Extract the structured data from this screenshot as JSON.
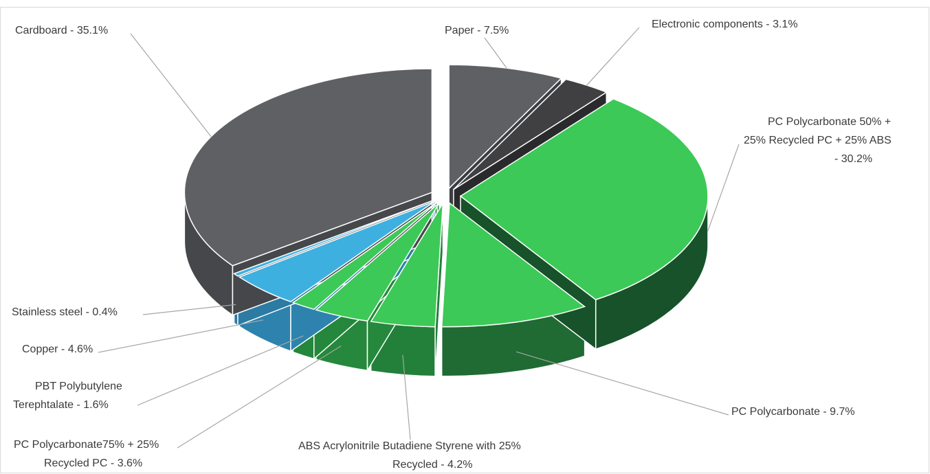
{
  "chart_data": {
    "type": "pie",
    "title": "",
    "legend": "none",
    "slices": [
      {
        "label": "Paper - 7.5%",
        "value": 7.5,
        "color": "#5f6063",
        "side": "#3c3d40",
        "exploded": true
      },
      {
        "label": "Electronic components - 3.1%",
        "value": 3.1,
        "color": "#404043",
        "side": "#2a2a2c",
        "exploded": true
      },
      {
        "label": "PC Polycarbonate 50% + 25% Recycled PC + 25% ABS - 30.2%",
        "value": 30.2,
        "color": "#3cc957",
        "side": "#17522a",
        "exploded": true
      },
      {
        "label": "PC Polycarbonate - 9.7%",
        "value": 9.7,
        "color": "#3cc957",
        "side": "#1f6b33",
        "exploded": true
      },
      {
        "label": "ABS Acrylonitrile Butadiene Styrene with 25% Recycled - 4.2%",
        "value": 4.2,
        "color": "#3cc957",
        "side": "#23803a",
        "exploded": true
      },
      {
        "label": "PC Polycarbonate75% + 25% Recycled PC - 3.6%",
        "value": 3.6,
        "color": "#3cc957",
        "side": "#25883c",
        "exploded": true
      },
      {
        "label": "PBT Polybutylene Terephtalate - 1.6%",
        "value": 1.6,
        "color": "#3cc957",
        "side": "#24873b",
        "exploded": true
      },
      {
        "label": "Copper - 4.6%",
        "value": 4.6,
        "color": "#3eb0e0",
        "side": "#2d83ad",
        "exploded": true
      },
      {
        "label": "Stainless steel - 0.4%",
        "value": 0.4,
        "color": "#3eb0e0",
        "side": "#2b7ba3",
        "exploded": true
      },
      {
        "label": "Cardboard - 35.1%",
        "value": 35.1,
        "color": "#5f6063",
        "side": "#46474a",
        "exploded": true
      }
    ]
  },
  "labels": {
    "paper": "Paper - 7.5%",
    "electronic": "Electronic components - 3.1%",
    "pc50_line1": "PC Polycarbonate 50% +",
    "pc50_line2": "25% Recycled PC + 25% ABS",
    "pc50_line3": "- 30.2%",
    "pc": "PC Polycarbonate - 9.7%",
    "abs_line1": "ABS Acrylonitrile Butadiene Styrene with 25%",
    "abs_line2": "Recycled - 4.2%",
    "pc75_line1": "PC Polycarbonate75% + 25%",
    "pc75_line2": "Recycled PC - 3.6%",
    "pbt_line1": "PBT Polybutylene",
    "pbt_line2": "Terephtalate - 1.6%",
    "copper": "Copper - 4.6%",
    "stainless": "Stainless steel - 0.4%",
    "cardboard": "Cardboard - 35.1%"
  }
}
